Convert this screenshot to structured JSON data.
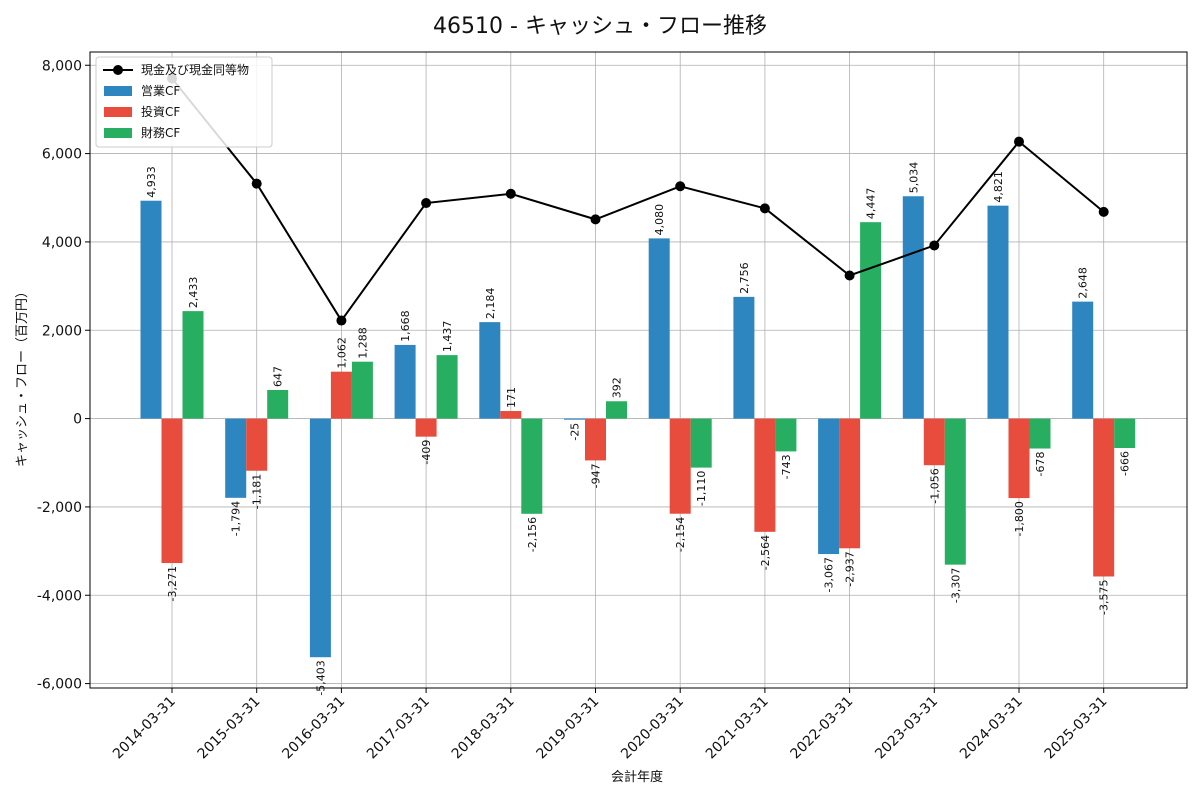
{
  "chart_data": {
    "type": "bar",
    "title": "46510 - キャッシュ・フロー推移",
    "xlabel": "会計年度",
    "ylabel": "キャッシュ・フロー（百万円）",
    "ylim": [
      -6000,
      8000
    ],
    "yticks": [
      -6000,
      -4000,
      -2000,
      0,
      2000,
      4000,
      6000,
      8000
    ],
    "ytick_labels": [
      "-6,000",
      "-4,000",
      "-2,000",
      "0",
      "2,000",
      "4,000",
      "6,000",
      "8,000"
    ],
    "grid": true,
    "legend_position": "top-left",
    "categories": [
      "2014-03-31",
      "2015-03-31",
      "2016-03-31",
      "2017-03-31",
      "2018-03-31",
      "2019-03-31",
      "2020-03-31",
      "2021-03-31",
      "2022-03-31",
      "2023-03-31",
      "2024-03-31",
      "2025-03-31"
    ],
    "series": [
      {
        "name": "営業CF",
        "kind": "bar",
        "color": "#2e86c1",
        "values": [
          4933,
          -1794,
          -5403,
          1668,
          2184,
          -25,
          4080,
          2756,
          -3067,
          5034,
          4821,
          2648
        ],
        "labels": [
          "4,933",
          "-1,794",
          "-5,403",
          "1,668",
          "2,184",
          "-25",
          "4,080",
          "2,756",
          "-3,067",
          "5,034",
          "4,821",
          "2,648"
        ]
      },
      {
        "name": "投資CF",
        "kind": "bar",
        "color": "#e74c3c",
        "values": [
          -3271,
          -1181,
          1062,
          -409,
          171,
          -947,
          -2154,
          -2564,
          -2937,
          -1056,
          -1800,
          -3575
        ],
        "labels": [
          "-3,271",
          "-1,181",
          "1,062",
          "-409",
          "171",
          "-947",
          "-2,154",
          "-2,564",
          "-2,937",
          "-1,056",
          "-1,800",
          "-3,575"
        ]
      },
      {
        "name": "財務CF",
        "kind": "bar",
        "color": "#27ae60",
        "values": [
          2433,
          647,
          1288,
          1437,
          -2156,
          392,
          -1110,
          -743,
          4447,
          -3307,
          -678,
          -666
        ],
        "labels": [
          "2,433",
          "647",
          "1,288",
          "1,437",
          "-2,156",
          "392",
          "-1,110",
          "-743",
          "4,447",
          "-3,307",
          "-678",
          "-666"
        ]
      },
      {
        "name": "現金及び現金同等物",
        "kind": "line",
        "color": "#000000",
        "values": [
          7700,
          5320,
          2220,
          4880,
          5090,
          4510,
          5260,
          4760,
          3240,
          3920,
          6270,
          4680
        ]
      }
    ]
  }
}
